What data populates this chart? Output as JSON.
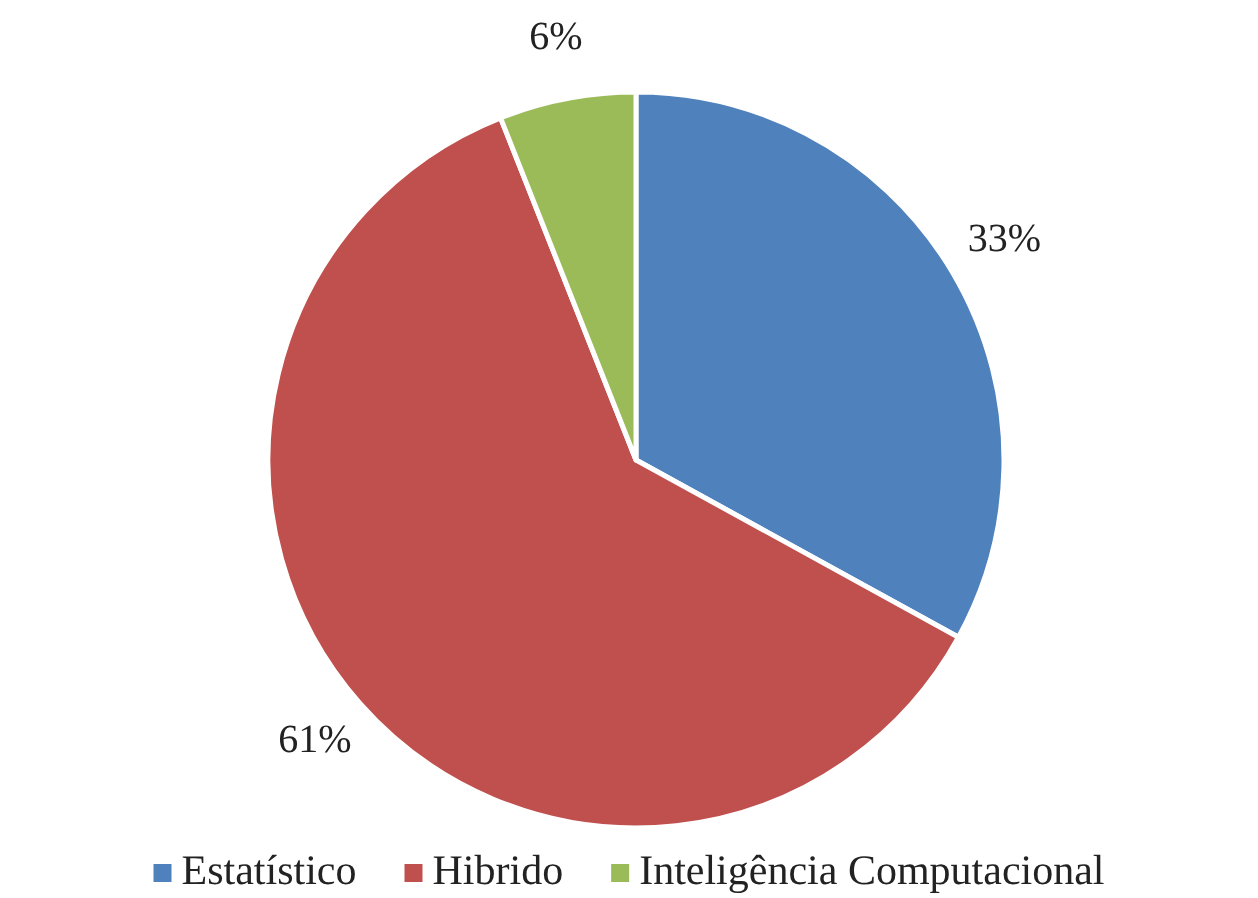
{
  "chart_data": {
    "type": "pie",
    "categories": [
      "Estatístico",
      "Hibrido",
      "Inteligência Computacional"
    ],
    "values": [
      33,
      61,
      6
    ],
    "colors": [
      "#4f81bd",
      "#c0504d",
      "#9bbb59"
    ],
    "value_labels": [
      "33%",
      "61%",
      "6%"
    ],
    "legend": "bottom"
  }
}
